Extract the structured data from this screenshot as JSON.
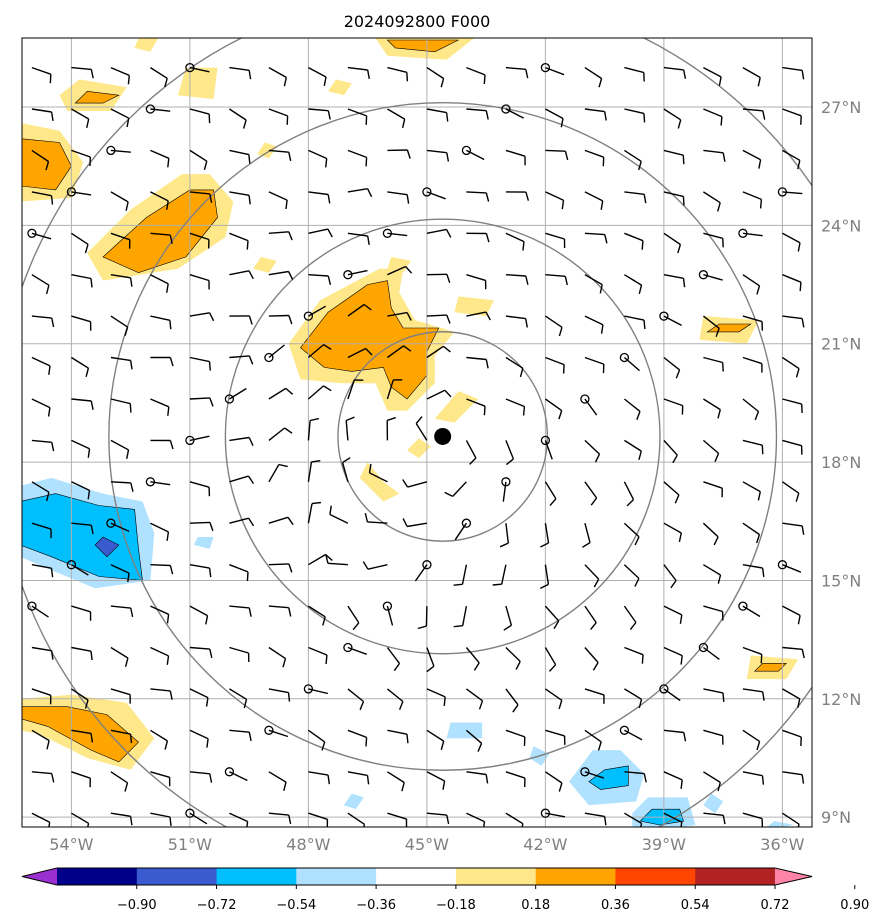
{
  "chart_data": {
    "type": "map-contour",
    "title": "2024092800 F000",
    "projection": "PlateCarree",
    "extent": {
      "lon_min": -55.25,
      "lon_max": -35.25,
      "lat_min": 8.75,
      "lat_max": 28.75
    },
    "x_ticks": [
      {
        "lon": -54,
        "label": "54°W"
      },
      {
        "lon": -51,
        "label": "51°W"
      },
      {
        "lon": -48,
        "label": "48°W"
      },
      {
        "lon": -45,
        "label": "45°W"
      },
      {
        "lon": -42,
        "label": "42°W"
      },
      {
        "lon": -39,
        "label": "39°W"
      },
      {
        "lon": -36,
        "label": "36°W"
      }
    ],
    "y_ticks": [
      {
        "lat": 27,
        "label": "27°N"
      },
      {
        "lat": 24,
        "label": "24°N"
      },
      {
        "lat": 21,
        "label": "21°N"
      },
      {
        "lat": 18,
        "label": "18°N"
      },
      {
        "lat": 15,
        "label": "15°N"
      },
      {
        "lat": 12,
        "label": "12°N"
      },
      {
        "lat": 9,
        "label": "9°N"
      }
    ],
    "grid": true,
    "center": {
      "lon": -44.6,
      "lat": 18.65
    },
    "range_rings_deg": [
      2.65,
      5.5,
      8.45,
      11.3
    ],
    "colorbar": {
      "levels": [
        "−0.90",
        "−0.72",
        "−0.54",
        "−0.36",
        "−0.18",
        "0.18",
        "0.36",
        "0.54",
        "0.72",
        "0.90"
      ],
      "colors": [
        "#9b30d0",
        "#00008b",
        "#3a5bd0",
        "#00bfff",
        "#b0e2ff",
        "#ffffff",
        "#ffe88a",
        "#ffa500",
        "#ff4500",
        "#b22222",
        "#ff85a8"
      ],
      "extend": "both"
    },
    "shaded_regions": [
      {
        "level": 0.36,
        "color": "#ffa500",
        "points": [
          [
            -46.5,
            22.5
          ],
          [
            -47.5,
            21.8
          ],
          [
            -48.2,
            20.9
          ],
          [
            -47.6,
            20.4
          ],
          [
            -46.9,
            20.3
          ],
          [
            -46.1,
            20.4
          ],
          [
            -45.9,
            19.9
          ],
          [
            -45.5,
            19.6
          ],
          [
            -45.0,
            20.2
          ],
          [
            -45.0,
            20.8
          ],
          [
            -44.7,
            21.4
          ],
          [
            -45.6,
            21.4
          ],
          [
            -45.9,
            21.9
          ],
          [
            -46.0,
            22.6
          ]
        ]
      },
      {
        "level": 0.36,
        "color": "#ffa500",
        "points": [
          [
            -51.0,
            24.9
          ],
          [
            -52.1,
            24.2
          ],
          [
            -53.2,
            23.2
          ],
          [
            -52.3,
            22.8
          ],
          [
            -51.1,
            23.2
          ],
          [
            -50.3,
            24.2
          ],
          [
            -50.4,
            24.9
          ]
        ]
      },
      {
        "level": 0.36,
        "color": "#ffa500",
        "points": [
          [
            -55.3,
            26.2
          ],
          [
            -54.3,
            26.1
          ],
          [
            -54.0,
            25.5
          ],
          [
            -54.4,
            24.9
          ],
          [
            -55.3,
            25.0
          ]
        ]
      },
      {
        "level": 0.36,
        "color": "#ffa500",
        "points": [
          [
            -55.3,
            11.8
          ],
          [
            -54.1,
            11.8
          ],
          [
            -53.1,
            11.6
          ],
          [
            -52.3,
            10.9
          ],
          [
            -52.8,
            10.4
          ],
          [
            -53.5,
            10.7
          ],
          [
            -54.6,
            11.3
          ],
          [
            -55.3,
            11.5
          ]
        ]
      },
      {
        "level": 0.36,
        "color": "#ffa500",
        "points": [
          [
            -53.6,
            27.4
          ],
          [
            -52.8,
            27.3
          ],
          [
            -53.2,
            27.1
          ],
          [
            -53.9,
            27.1
          ]
        ]
      },
      {
        "level": 0.36,
        "color": "#ffa500",
        "points": [
          [
            -46.0,
            28.7
          ],
          [
            -44.2,
            28.7
          ],
          [
            -44.8,
            28.4
          ],
          [
            -45.8,
            28.5
          ]
        ]
      },
      {
        "level": 0.36,
        "color": "#ffa500",
        "points": [
          [
            -37.6,
            21.5
          ],
          [
            -36.8,
            21.5
          ],
          [
            -37.1,
            21.3
          ],
          [
            -37.9,
            21.3
          ]
        ]
      },
      {
        "level": 0.36,
        "color": "#ffa500",
        "points": [
          [
            -36.5,
            12.9
          ],
          [
            -35.9,
            12.9
          ],
          [
            -36.1,
            12.7
          ],
          [
            -36.7,
            12.7
          ]
        ]
      },
      {
        "level": -0.36,
        "color": "#00bfff",
        "points": [
          [
            -55.3,
            17.0
          ],
          [
            -54.4,
            17.2
          ],
          [
            -53.3,
            16.9
          ],
          [
            -52.4,
            16.8
          ],
          [
            -52.3,
            15.8
          ],
          [
            -52.2,
            15.0
          ],
          [
            -53.3,
            15.1
          ],
          [
            -54.5,
            15.6
          ],
          [
            -55.3,
            15.9
          ]
        ]
      },
      {
        "level": -0.36,
        "color": "#00bfff",
        "points": [
          [
            -40.5,
            10.2
          ],
          [
            -39.9,
            10.3
          ],
          [
            -39.9,
            9.8
          ],
          [
            -40.6,
            9.7
          ],
          [
            -40.9,
            9.9
          ]
        ]
      },
      {
        "level": -0.36,
        "color": "#00bfff",
        "points": [
          [
            -39.3,
            9.2
          ],
          [
            -38.6,
            9.2
          ],
          [
            -38.5,
            8.9
          ],
          [
            -39.1,
            8.8
          ],
          [
            -39.6,
            8.9
          ]
        ]
      },
      {
        "level": -0.54,
        "color": "#3a5bd0",
        "points": [
          [
            -53.2,
            16.1
          ],
          [
            -52.8,
            15.9
          ],
          [
            -53.1,
            15.6
          ],
          [
            -53.4,
            15.9
          ]
        ]
      }
    ],
    "light_regions": [
      {
        "level": 0.18,
        "color": "#ffe88a",
        "points": [
          [
            -46.2,
            22.9
          ],
          [
            -47.7,
            22.1
          ],
          [
            -48.5,
            21.0
          ],
          [
            -48.2,
            20.1
          ],
          [
            -47.2,
            20.0
          ],
          [
            -46.3,
            20.0
          ],
          [
            -46.0,
            19.3
          ],
          [
            -45.5,
            19.3
          ],
          [
            -44.8,
            20.0
          ],
          [
            -44.8,
            20.7
          ],
          [
            -44.3,
            21.3
          ],
          [
            -45.3,
            21.6
          ],
          [
            -45.7,
            22.3
          ],
          [
            -45.6,
            22.9
          ]
        ]
      },
      {
        "level": 0.18,
        "color": "#ffe88a",
        "points": [
          [
            -51.2,
            25.3
          ],
          [
            -52.5,
            24.4
          ],
          [
            -53.6,
            23.3
          ],
          [
            -53.2,
            22.6
          ],
          [
            -51.3,
            22.9
          ],
          [
            -50.1,
            23.7
          ],
          [
            -49.9,
            24.6
          ],
          [
            -50.5,
            25.3
          ]
        ]
      },
      {
        "level": 0.18,
        "color": "#ffe88a",
        "points": [
          [
            -55.3,
            26.6
          ],
          [
            -54.3,
            26.4
          ],
          [
            -53.7,
            25.6
          ],
          [
            -54.0,
            24.7
          ],
          [
            -55.3,
            24.6
          ]
        ]
      },
      {
        "level": 0.18,
        "color": "#ffe88a",
        "points": [
          [
            -55.3,
            12.0
          ],
          [
            -54.0,
            12.1
          ],
          [
            -52.6,
            11.9
          ],
          [
            -51.9,
            11.0
          ],
          [
            -52.5,
            10.2
          ],
          [
            -53.6,
            10.5
          ],
          [
            -54.8,
            11.1
          ],
          [
            -55.3,
            11.2
          ]
        ]
      },
      {
        "level": 0.18,
        "color": "#ffe88a",
        "points": [
          [
            -53.8,
            27.7
          ],
          [
            -52.6,
            27.5
          ],
          [
            -53.0,
            26.9
          ],
          [
            -54.1,
            26.9
          ],
          [
            -54.3,
            27.3
          ]
        ]
      },
      {
        "level": 0.18,
        "color": "#ffe88a",
        "points": [
          [
            -52.3,
            28.75
          ],
          [
            -51.8,
            28.75
          ],
          [
            -52.0,
            28.4
          ],
          [
            -52.4,
            28.5
          ]
        ]
      },
      {
        "level": 0.18,
        "color": "#ffe88a",
        "points": [
          [
            -51.1,
            28.0
          ],
          [
            -50.3,
            28.0
          ],
          [
            -50.4,
            27.2
          ],
          [
            -51.3,
            27.3
          ]
        ]
      },
      {
        "level": 0.18,
        "color": "#ffe88a",
        "points": [
          [
            -46.3,
            28.75
          ],
          [
            -43.8,
            28.75
          ],
          [
            -44.5,
            28.2
          ],
          [
            -46.0,
            28.3
          ]
        ]
      },
      {
        "level": 0.18,
        "color": "#ffe88a",
        "points": [
          [
            -49.2,
            23.2
          ],
          [
            -48.8,
            23.1
          ],
          [
            -49.0,
            22.8
          ],
          [
            -49.4,
            22.9
          ]
        ]
      },
      {
        "level": 0.18,
        "color": "#ffe88a",
        "points": [
          [
            -49.1,
            26.1
          ],
          [
            -48.8,
            26.0
          ],
          [
            -49.0,
            25.7
          ],
          [
            -49.3,
            25.8
          ]
        ]
      },
      {
        "level": 0.18,
        "color": "#ffe88a",
        "points": [
          [
            -47.3,
            27.7
          ],
          [
            -46.9,
            27.6
          ],
          [
            -47.1,
            27.3
          ],
          [
            -47.5,
            27.4
          ]
        ]
      },
      {
        "level": 0.18,
        "color": "#ffe88a",
        "points": [
          [
            -45.9,
            23.2
          ],
          [
            -45.4,
            23.1
          ],
          [
            -45.6,
            22.8
          ],
          [
            -46.0,
            22.9
          ]
        ]
      },
      {
        "level": 0.18,
        "color": "#ffe88a",
        "points": [
          [
            -44.2,
            22.2
          ],
          [
            -43.3,
            22.1
          ],
          [
            -43.5,
            21.7
          ],
          [
            -44.3,
            21.8
          ]
        ]
      },
      {
        "level": 0.18,
        "color": "#ffe88a",
        "points": [
          [
            -44.2,
            19.8
          ],
          [
            -43.7,
            19.6
          ],
          [
            -44.3,
            19.0
          ],
          [
            -44.8,
            19.1
          ]
        ]
      },
      {
        "level": 0.18,
        "color": "#ffe88a",
        "points": [
          [
            -45.2,
            18.6
          ],
          [
            -44.9,
            18.4
          ],
          [
            -45.2,
            18.1
          ],
          [
            -45.5,
            18.3
          ]
        ]
      },
      {
        "level": 0.18,
        "color": "#ffe88a",
        "points": [
          [
            -46.5,
            18.0
          ],
          [
            -46.1,
            17.5
          ],
          [
            -45.7,
            17.2
          ],
          [
            -46.1,
            17.0
          ],
          [
            -46.7,
            17.6
          ]
        ]
      },
      {
        "level": 0.18,
        "color": "#ffe88a",
        "points": [
          [
            -38.0,
            21.7
          ],
          [
            -36.6,
            21.6
          ],
          [
            -36.9,
            21.0
          ],
          [
            -38.1,
            21.1
          ]
        ]
      },
      {
        "level": 0.18,
        "color": "#ffe88a",
        "points": [
          [
            -36.8,
            13.1
          ],
          [
            -35.6,
            13.0
          ],
          [
            -35.9,
            12.5
          ],
          [
            -36.9,
            12.5
          ]
        ]
      },
      {
        "level": -0.18,
        "color": "#b0e2ff",
        "points": [
          [
            -55.3,
            17.4
          ],
          [
            -54.5,
            17.6
          ],
          [
            -53.2,
            17.2
          ],
          [
            -52.2,
            17.0
          ],
          [
            -51.9,
            16.2
          ],
          [
            -52.0,
            15.0
          ],
          [
            -53.4,
            14.8
          ],
          [
            -54.6,
            15.3
          ],
          [
            -55.3,
            15.6
          ]
        ]
      },
      {
        "level": -0.18,
        "color": "#b0e2ff",
        "points": [
          [
            -40.8,
            10.7
          ],
          [
            -40.1,
            10.7
          ],
          [
            -39.5,
            10.1
          ],
          [
            -39.7,
            9.4
          ],
          [
            -40.9,
            9.3
          ],
          [
            -41.4,
            9.9
          ]
        ]
      },
      {
        "level": -0.18,
        "color": "#b0e2ff",
        "points": [
          [
            -39.4,
            9.5
          ],
          [
            -38.4,
            9.5
          ],
          [
            -38.2,
            8.8
          ],
          [
            -38.6,
            8.75
          ],
          [
            -39.8,
            8.75
          ],
          [
            -39.8,
            9.1
          ]
        ]
      },
      {
        "level": -0.18,
        "color": "#b0e2ff",
        "points": [
          [
            -44.4,
            11.4
          ],
          [
            -43.6,
            11.4
          ],
          [
            -43.6,
            11.0
          ],
          [
            -44.5,
            11.0
          ]
        ]
      },
      {
        "level": -0.18,
        "color": "#b0e2ff",
        "points": [
          [
            -50.8,
            16.1
          ],
          [
            -50.4,
            16.1
          ],
          [
            -50.5,
            15.8
          ],
          [
            -50.9,
            15.9
          ]
        ]
      },
      {
        "level": -0.18,
        "color": "#b0e2ff",
        "points": [
          [
            -42.3,
            10.8
          ],
          [
            -41.9,
            10.6
          ],
          [
            -42.1,
            10.3
          ],
          [
            -42.4,
            10.5
          ]
        ]
      },
      {
        "level": -0.18,
        "color": "#b0e2ff",
        "points": [
          [
            -46.9,
            9.6
          ],
          [
            -46.6,
            9.5
          ],
          [
            -46.8,
            9.2
          ],
          [
            -47.1,
            9.3
          ]
        ]
      },
      {
        "level": -0.18,
        "color": "#b0e2ff",
        "points": [
          [
            -37.8,
            9.6
          ],
          [
            -37.5,
            9.4
          ],
          [
            -37.7,
            9.1
          ],
          [
            -38.0,
            9.3
          ]
        ]
      },
      {
        "level": -0.18,
        "color": "#b0e2ff",
        "points": [
          [
            -36.2,
            8.9
          ],
          [
            -35.7,
            8.8
          ],
          [
            -36.0,
            8.75
          ],
          [
            -36.4,
            8.75
          ]
        ]
      }
    ]
  }
}
